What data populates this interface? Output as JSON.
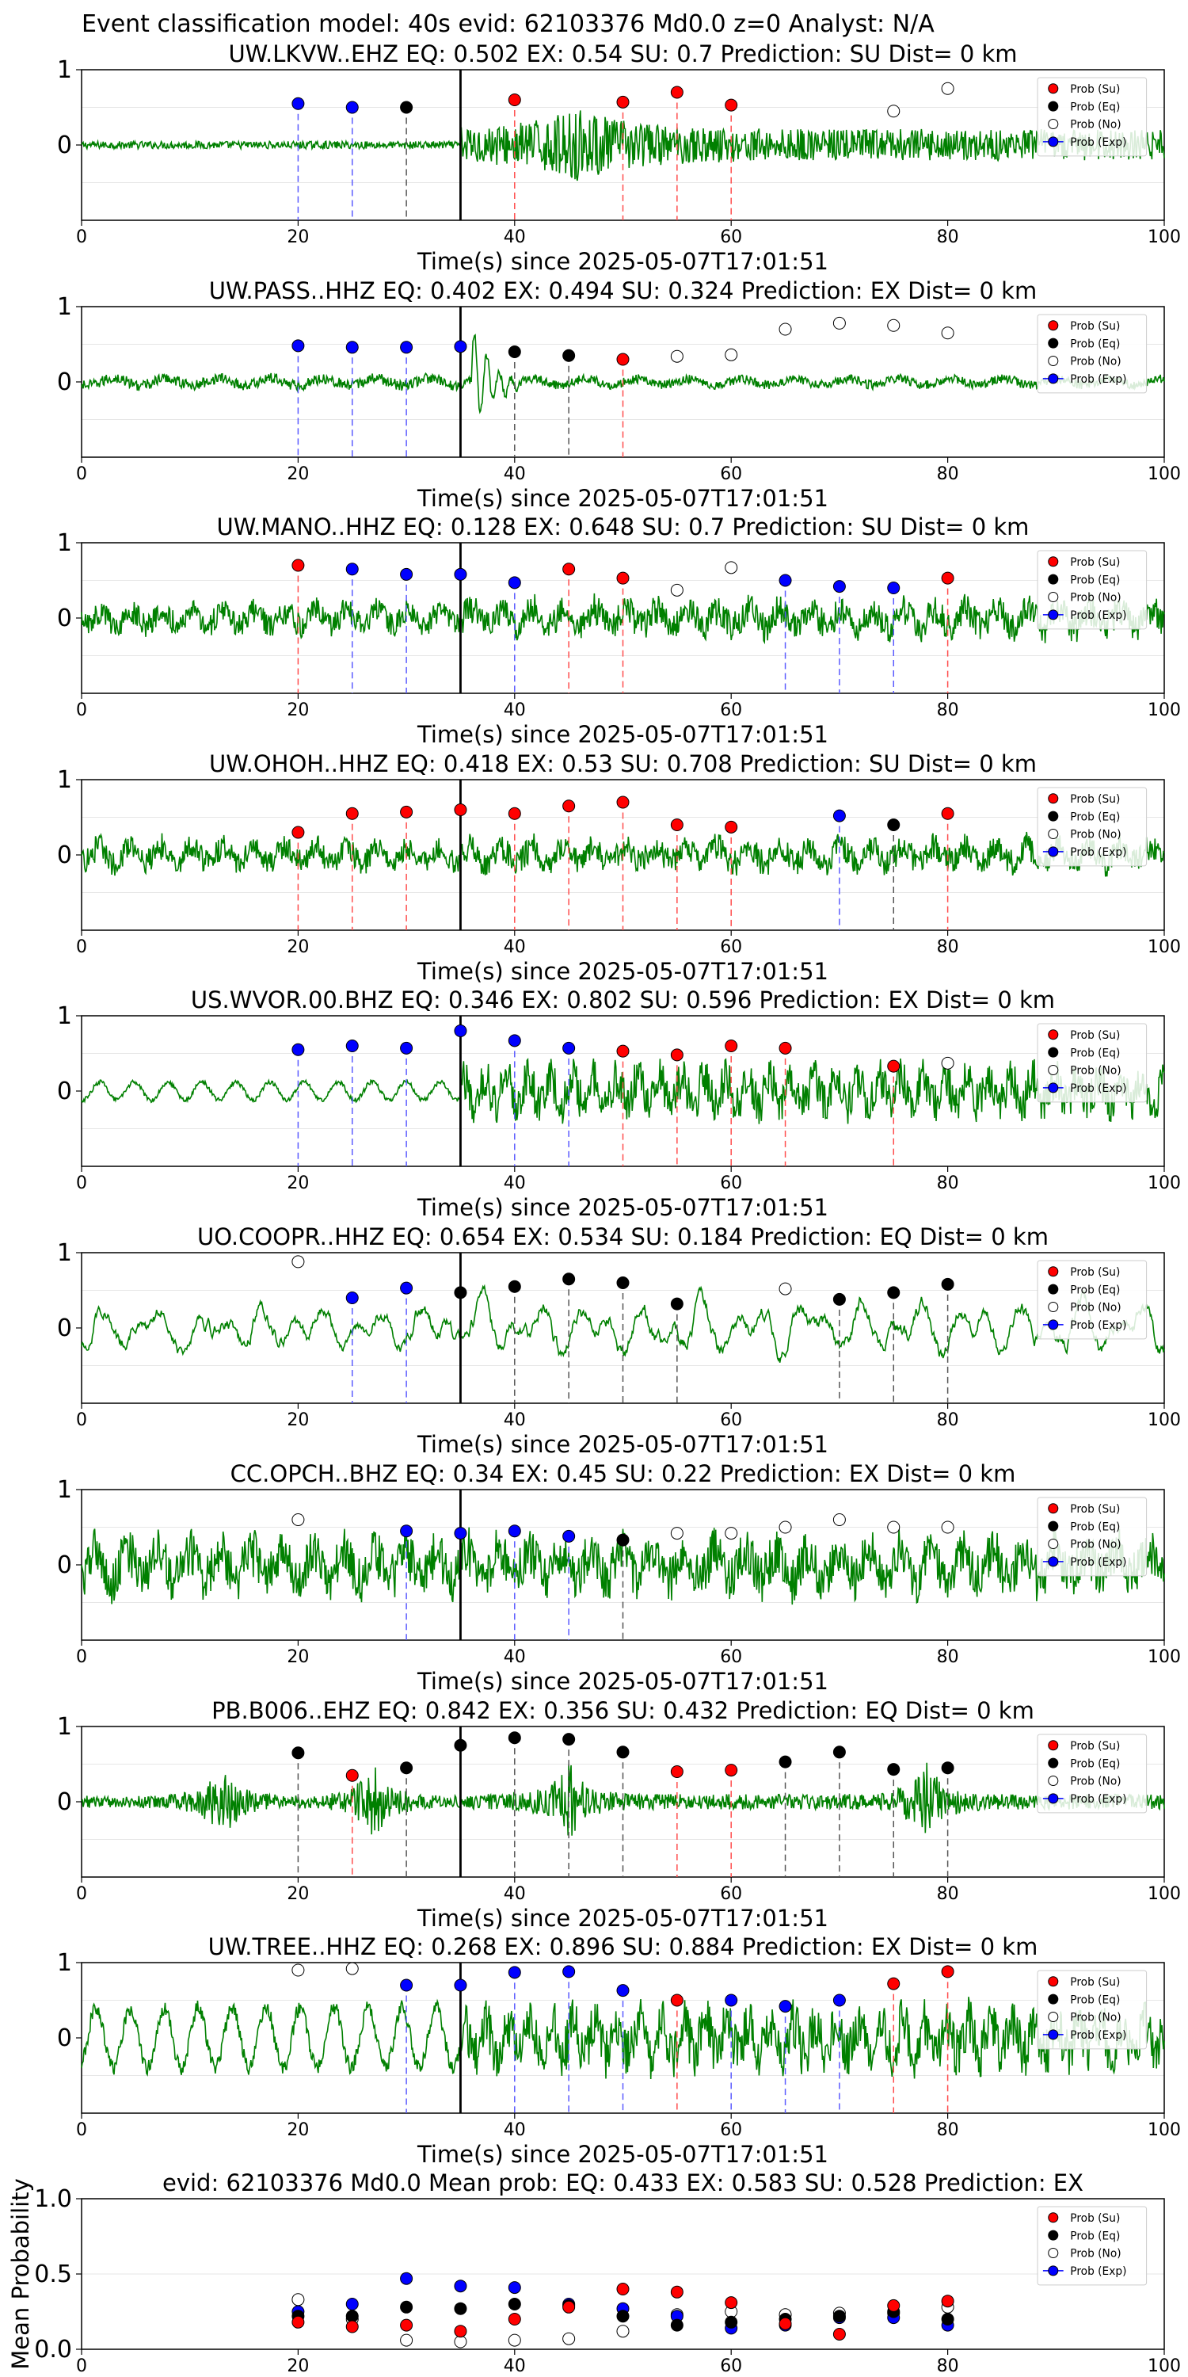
{
  "figure": {
    "title": "Event classification model: 40s evid: 62103376 Md0.0 z=0 Analyst: N/A"
  },
  "legend": {
    "entries": [
      {
        "key": "su",
        "label": "Prob (Su)",
        "color": "#ff0000"
      },
      {
        "key": "eq",
        "label": "Prob (Eq)",
        "color": "#000000"
      },
      {
        "key": "no",
        "label": "Prob (No)",
        "color": "#ffffff"
      },
      {
        "key": "ex",
        "label": "Prob (Exp)",
        "color": "#0000ff"
      }
    ]
  },
  "colors": {
    "waveform": "#008000",
    "su": "#ff0000",
    "eq": "#000000",
    "no": "#ffffff",
    "ex": "#0000ff",
    "arrival_line": "#000000"
  },
  "chart_data": [
    {
      "type": "line",
      "title": "UW.LKVW..EHZ   EQ: 0.502  EX: 0.54  SU: 0.7   Prediction: SU    Dist= 0 km",
      "xlabel": "Time(s) since 2025-05-07T17:01:51",
      "xlim": [
        0,
        100
      ],
      "ylim": [
        -1,
        1
      ],
      "xticks": [
        0,
        20,
        40,
        60,
        80,
        100
      ],
      "yticks": [
        0,
        1
      ],
      "arrival_time": 35,
      "waveform": {
        "style": "sparse-then-burst",
        "amp_before": 0.1,
        "amp_after": 0.35
      },
      "points": [
        {
          "t": 20,
          "cls": "ex",
          "p": 0.55
        },
        {
          "t": 25,
          "cls": "ex",
          "p": 0.5
        },
        {
          "t": 30,
          "cls": "eq",
          "p": 0.5
        },
        {
          "t": 40,
          "cls": "su",
          "p": 0.6
        },
        {
          "t": 50,
          "cls": "su",
          "p": 0.57
        },
        {
          "t": 55,
          "cls": "su",
          "p": 0.7
        },
        {
          "t": 60,
          "cls": "su",
          "p": 0.53
        },
        {
          "t": 75,
          "cls": "no",
          "p": 0.45
        },
        {
          "t": 80,
          "cls": "no",
          "p": 0.75
        }
      ]
    },
    {
      "type": "line",
      "title": "UW.PASS..HHZ   EQ: 0.402  EX: 0.494  SU: 0.324   Prediction: EX    Dist= 0 km",
      "xlabel": "Time(s) since 2025-05-07T17:01:51",
      "xlim": [
        0,
        100
      ],
      "ylim": [
        -1,
        1
      ],
      "xticks": [
        0,
        20,
        40,
        60,
        80,
        100
      ],
      "yticks": [
        0,
        1
      ],
      "arrival_time": 35,
      "waveform": {
        "style": "low-with-pulse",
        "amp_before": 0.12,
        "amp_after": 0.1
      },
      "points": [
        {
          "t": 20,
          "cls": "ex",
          "p": 0.48
        },
        {
          "t": 25,
          "cls": "ex",
          "p": 0.46
        },
        {
          "t": 30,
          "cls": "ex",
          "p": 0.46
        },
        {
          "t": 35,
          "cls": "ex",
          "p": 0.47
        },
        {
          "t": 40,
          "cls": "eq",
          "p": 0.4
        },
        {
          "t": 45,
          "cls": "eq",
          "p": 0.35
        },
        {
          "t": 50,
          "cls": "su",
          "p": 0.3
        },
        {
          "t": 55,
          "cls": "no",
          "p": 0.34
        },
        {
          "t": 60,
          "cls": "no",
          "p": 0.36
        },
        {
          "t": 65,
          "cls": "no",
          "p": 0.7
        },
        {
          "t": 70,
          "cls": "no",
          "p": 0.78
        },
        {
          "t": 75,
          "cls": "no",
          "p": 0.75
        },
        {
          "t": 80,
          "cls": "no",
          "p": 0.65
        }
      ]
    },
    {
      "type": "line",
      "title": "UW.MANO..HHZ   EQ: 0.128  EX: 0.648  SU: 0.7   Prediction: SU    Dist= 0 km",
      "xlabel": "Time(s) since 2025-05-07T17:01:51",
      "xlim": [
        0,
        100
      ],
      "ylim": [
        -1,
        1
      ],
      "xticks": [
        0,
        20,
        40,
        60,
        80,
        100
      ],
      "yticks": [
        0,
        1
      ],
      "arrival_time": 35,
      "waveform": {
        "style": "noisy",
        "amp_before": 0.3,
        "amp_after": 0.35
      },
      "points": [
        {
          "t": 20,
          "cls": "su",
          "p": 0.7
        },
        {
          "t": 25,
          "cls": "ex",
          "p": 0.65
        },
        {
          "t": 30,
          "cls": "ex",
          "p": 0.58
        },
        {
          "t": 35,
          "cls": "ex",
          "p": 0.58
        },
        {
          "t": 40,
          "cls": "ex",
          "p": 0.47
        },
        {
          "t": 45,
          "cls": "su",
          "p": 0.65
        },
        {
          "t": 50,
          "cls": "su",
          "p": 0.53
        },
        {
          "t": 55,
          "cls": "no",
          "p": 0.37
        },
        {
          "t": 60,
          "cls": "no",
          "p": 0.67
        },
        {
          "t": 65,
          "cls": "ex",
          "p": 0.5
        },
        {
          "t": 70,
          "cls": "ex",
          "p": 0.42
        },
        {
          "t": 75,
          "cls": "ex",
          "p": 0.4
        },
        {
          "t": 80,
          "cls": "su",
          "p": 0.53
        }
      ]
    },
    {
      "type": "line",
      "title": "UW.OHOH..HHZ   EQ: 0.418  EX: 0.53  SU: 0.708   Prediction: SU    Dist= 0 km",
      "xlabel": "Time(s) since 2025-05-07T17:01:51",
      "xlim": [
        0,
        100
      ],
      "ylim": [
        -1,
        1
      ],
      "xticks": [
        0,
        20,
        40,
        60,
        80,
        100
      ],
      "yticks": [
        0,
        1
      ],
      "arrival_time": 35,
      "waveform": {
        "style": "noisy",
        "amp_before": 0.3,
        "amp_after": 0.32
      },
      "points": [
        {
          "t": 20,
          "cls": "su",
          "p": 0.3
        },
        {
          "t": 25,
          "cls": "su",
          "p": 0.55
        },
        {
          "t": 30,
          "cls": "su",
          "p": 0.57
        },
        {
          "t": 35,
          "cls": "su",
          "p": 0.6
        },
        {
          "t": 40,
          "cls": "su",
          "p": 0.55
        },
        {
          "t": 45,
          "cls": "su",
          "p": 0.65
        },
        {
          "t": 50,
          "cls": "su",
          "p": 0.7
        },
        {
          "t": 55,
          "cls": "su",
          "p": 0.4
        },
        {
          "t": 60,
          "cls": "su",
          "p": 0.37
        },
        {
          "t": 70,
          "cls": "ex",
          "p": 0.52
        },
        {
          "t": 75,
          "cls": "eq",
          "p": 0.4
        },
        {
          "t": 80,
          "cls": "su",
          "p": 0.55
        }
      ]
    },
    {
      "type": "line",
      "title": "US.WVOR.00.BHZ   EQ: 0.346  EX: 0.802  SU: 0.596   Prediction: EX    Dist= 0 km",
      "xlabel": "Time(s) since 2025-05-07T17:01:51",
      "xlim": [
        0,
        100
      ],
      "ylim": [
        -1,
        1
      ],
      "xticks": [
        0,
        20,
        40,
        60,
        80,
        100
      ],
      "yticks": [
        0,
        1
      ],
      "arrival_time": 35,
      "waveform": {
        "style": "smooth-then-noisy",
        "amp_before": 0.15,
        "amp_after": 0.45
      },
      "points": [
        {
          "t": 20,
          "cls": "ex",
          "p": 0.55
        },
        {
          "t": 25,
          "cls": "ex",
          "p": 0.6
        },
        {
          "t": 30,
          "cls": "ex",
          "p": 0.57
        },
        {
          "t": 35,
          "cls": "ex",
          "p": 0.8
        },
        {
          "t": 40,
          "cls": "ex",
          "p": 0.67
        },
        {
          "t": 45,
          "cls": "ex",
          "p": 0.57
        },
        {
          "t": 50,
          "cls": "su",
          "p": 0.53
        },
        {
          "t": 55,
          "cls": "su",
          "p": 0.48
        },
        {
          "t": 60,
          "cls": "su",
          "p": 0.6
        },
        {
          "t": 65,
          "cls": "su",
          "p": 0.57
        },
        {
          "t": 75,
          "cls": "su",
          "p": 0.33
        },
        {
          "t": 80,
          "cls": "no",
          "p": 0.37
        }
      ]
    },
    {
      "type": "line",
      "title": "UO.COOPR..HHZ   EQ: 0.654  EX: 0.534  SU: 0.184   Prediction: EQ    Dist= 0 km",
      "xlabel": "Time(s) since 2025-05-07T17:01:51",
      "xlim": [
        0,
        100
      ],
      "ylim": [
        -1,
        1
      ],
      "xticks": [
        0,
        20,
        40,
        60,
        80,
        100
      ],
      "yticks": [
        0,
        1
      ],
      "arrival_time": 35,
      "waveform": {
        "style": "smooth-large",
        "amp_before": 0.45,
        "amp_after": 0.5
      },
      "points": [
        {
          "t": 20,
          "cls": "no",
          "p": 0.88
        },
        {
          "t": 25,
          "cls": "ex",
          "p": 0.4
        },
        {
          "t": 30,
          "cls": "ex",
          "p": 0.53
        },
        {
          "t": 35,
          "cls": "eq",
          "p": 0.47
        },
        {
          "t": 40,
          "cls": "eq",
          "p": 0.55
        },
        {
          "t": 45,
          "cls": "eq",
          "p": 0.65
        },
        {
          "t": 50,
          "cls": "eq",
          "p": 0.6
        },
        {
          "t": 55,
          "cls": "eq",
          "p": 0.32
        },
        {
          "t": 65,
          "cls": "no",
          "p": 0.52
        },
        {
          "t": 70,
          "cls": "eq",
          "p": 0.38
        },
        {
          "t": 75,
          "cls": "eq",
          "p": 0.47
        },
        {
          "t": 80,
          "cls": "eq",
          "p": 0.58
        }
      ]
    },
    {
      "type": "line",
      "title": "CC.OPCH..BHZ   EQ: 0.34  EX: 0.45  SU: 0.22   Prediction: EX    Dist= 0 km",
      "xlabel": "Time(s) since 2025-05-07T17:01:51",
      "xlim": [
        0,
        100
      ],
      "ylim": [
        -1,
        1
      ],
      "xticks": [
        0,
        20,
        40,
        60,
        80,
        100
      ],
      "yticks": [
        0,
        1
      ],
      "arrival_time": 35,
      "waveform": {
        "style": "noisy",
        "amp_before": 0.55,
        "amp_after": 0.55
      },
      "points": [
        {
          "t": 20,
          "cls": "no",
          "p": 0.6
        },
        {
          "t": 30,
          "cls": "ex",
          "p": 0.45
        },
        {
          "t": 35,
          "cls": "ex",
          "p": 0.42
        },
        {
          "t": 40,
          "cls": "ex",
          "p": 0.45
        },
        {
          "t": 45,
          "cls": "ex",
          "p": 0.38
        },
        {
          "t": 50,
          "cls": "eq",
          "p": 0.33
        },
        {
          "t": 55,
          "cls": "no",
          "p": 0.42
        },
        {
          "t": 60,
          "cls": "no",
          "p": 0.42
        },
        {
          "t": 65,
          "cls": "no",
          "p": 0.5
        },
        {
          "t": 70,
          "cls": "no",
          "p": 0.6
        },
        {
          "t": 75,
          "cls": "no",
          "p": 0.5
        },
        {
          "t": 80,
          "cls": "no",
          "p": 0.5
        }
      ]
    },
    {
      "type": "line",
      "title": "PB.B006..EHZ   EQ: 0.842  EX: 0.356  SU: 0.432   Prediction: EQ    Dist= 0 km",
      "xlabel": "Time(s) since 2025-05-07T17:01:51",
      "xlim": [
        0,
        100
      ],
      "ylim": [
        -1,
        1
      ],
      "xticks": [
        0,
        20,
        40,
        60,
        80,
        100
      ],
      "yticks": [
        0,
        1
      ],
      "arrival_time": 35,
      "waveform": {
        "style": "sparse-bursts",
        "amp_before": 0.08,
        "amp_after": 0.1
      },
      "points": [
        {
          "t": 20,
          "cls": "eq",
          "p": 0.65
        },
        {
          "t": 25,
          "cls": "su",
          "p": 0.35
        },
        {
          "t": 30,
          "cls": "eq",
          "p": 0.45
        },
        {
          "t": 35,
          "cls": "eq",
          "p": 0.75
        },
        {
          "t": 40,
          "cls": "eq",
          "p": 0.85
        },
        {
          "t": 45,
          "cls": "eq",
          "p": 0.83
        },
        {
          "t": 50,
          "cls": "eq",
          "p": 0.66
        },
        {
          "t": 55,
          "cls": "su",
          "p": 0.4
        },
        {
          "t": 60,
          "cls": "su",
          "p": 0.42
        },
        {
          "t": 65,
          "cls": "eq",
          "p": 0.53
        },
        {
          "t": 70,
          "cls": "eq",
          "p": 0.66
        },
        {
          "t": 75,
          "cls": "eq",
          "p": 0.43
        },
        {
          "t": 80,
          "cls": "eq",
          "p": 0.45
        }
      ]
    },
    {
      "type": "line",
      "title": "UW.TREE..HHZ   EQ: 0.268  EX: 0.896  SU: 0.884   Prediction: EX    Dist= 0 km",
      "xlabel": "Time(s) since 2025-05-07T17:01:51",
      "xlim": [
        0,
        100
      ],
      "ylim": [
        -1,
        1
      ],
      "xticks": [
        0,
        20,
        40,
        60,
        80,
        100
      ],
      "yticks": [
        0,
        1
      ],
      "arrival_time": 35,
      "waveform": {
        "style": "smooth-then-noisy",
        "amp_before": 0.5,
        "amp_after": 0.55
      },
      "points": [
        {
          "t": 20,
          "cls": "no",
          "p": 0.9
        },
        {
          "t": 25,
          "cls": "no",
          "p": 0.92
        },
        {
          "t": 30,
          "cls": "ex",
          "p": 0.7
        },
        {
          "t": 35,
          "cls": "ex",
          "p": 0.7
        },
        {
          "t": 40,
          "cls": "ex",
          "p": 0.87
        },
        {
          "t": 45,
          "cls": "ex",
          "p": 0.88
        },
        {
          "t": 50,
          "cls": "ex",
          "p": 0.63
        },
        {
          "t": 55,
          "cls": "su",
          "p": 0.5
        },
        {
          "t": 60,
          "cls": "ex",
          "p": 0.5
        },
        {
          "t": 65,
          "cls": "ex",
          "p": 0.42
        },
        {
          "t": 70,
          "cls": "ex",
          "p": 0.5
        },
        {
          "t": 75,
          "cls": "su",
          "p": 0.72
        },
        {
          "t": 80,
          "cls": "su",
          "p": 0.88
        }
      ]
    },
    {
      "type": "scatter",
      "title": "evid: 62103376  Md0.0   Mean prob:   EQ: 0.433  EX: 0.583  SU: 0.528   Prediction: EX",
      "ylabel": "Mean Probability",
      "xlim": [
        0,
        100
      ],
      "ylim": [
        0,
        1
      ],
      "xticks": [
        0,
        20,
        40,
        60,
        80,
        100
      ],
      "yticks": [
        0.0,
        0.5,
        1.0
      ],
      "ytick_labels": [
        "0.0",
        "0.5",
        "1.0"
      ],
      "points": [
        {
          "t": 20,
          "su": 0.18,
          "eq": 0.22,
          "no": 0.33,
          "ex": 0.25
        },
        {
          "t": 25,
          "su": 0.15,
          "eq": 0.22,
          "no": 0.2,
          "ex": 0.3
        },
        {
          "t": 30,
          "su": 0.16,
          "eq": 0.28,
          "no": 0.06,
          "ex": 0.47
        },
        {
          "t": 35,
          "su": 0.12,
          "eq": 0.27,
          "no": 0.05,
          "ex": 0.42
        },
        {
          "t": 40,
          "su": 0.2,
          "eq": 0.3,
          "no": 0.06,
          "ex": 0.41
        },
        {
          "t": 45,
          "su": 0.28,
          "eq": 0.29,
          "no": 0.07,
          "ex": 0.3
        },
        {
          "t": 50,
          "su": 0.4,
          "eq": 0.22,
          "no": 0.12,
          "ex": 0.27
        },
        {
          "t": 55,
          "su": 0.38,
          "eq": 0.16,
          "no": 0.23,
          "ex": 0.22
        },
        {
          "t": 60,
          "su": 0.31,
          "eq": 0.18,
          "no": 0.25,
          "ex": 0.14
        },
        {
          "t": 65,
          "su": 0.17,
          "eq": 0.2,
          "no": 0.23,
          "ex": 0.16
        },
        {
          "t": 70,
          "su": 0.1,
          "eq": 0.22,
          "no": 0.24,
          "ex": 0.21
        },
        {
          "t": 75,
          "su": 0.29,
          "eq": 0.25,
          "no": 0.24,
          "ex": 0.21
        },
        {
          "t": 80,
          "su": 0.32,
          "eq": 0.2,
          "no": 0.28,
          "ex": 0.16
        }
      ]
    }
  ]
}
